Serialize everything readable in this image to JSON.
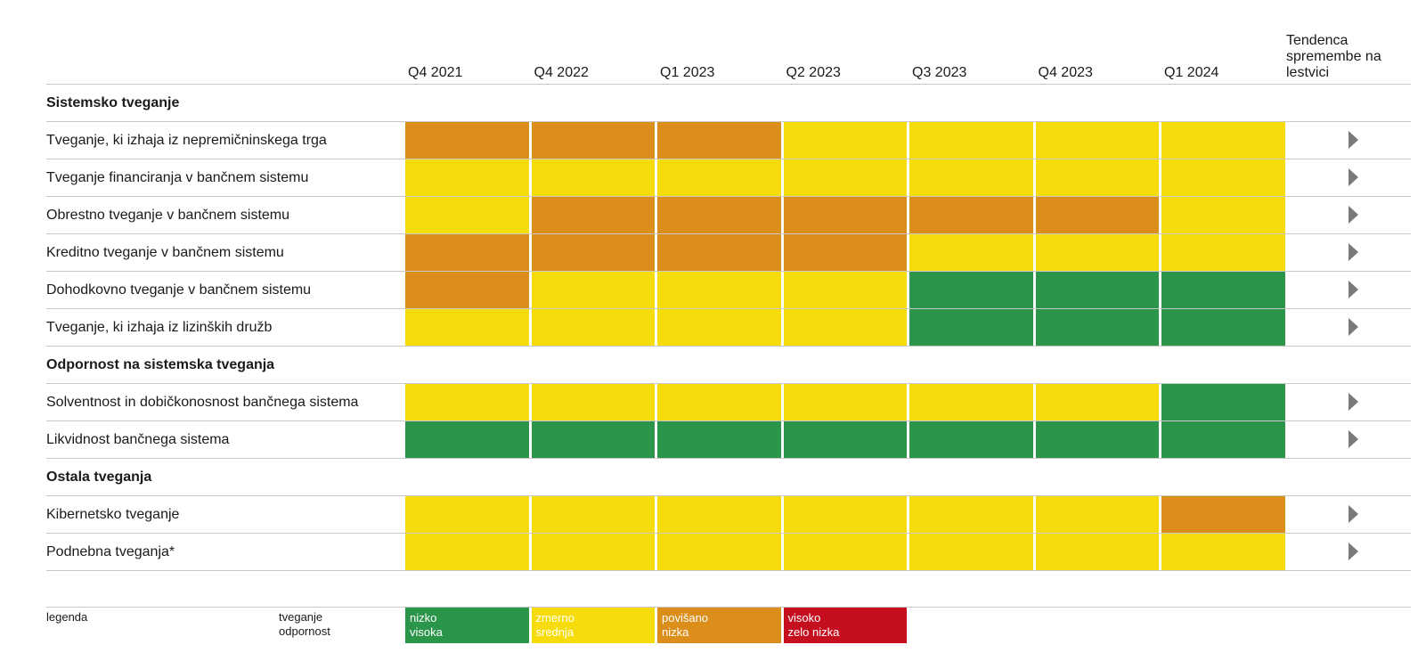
{
  "colors": {
    "low": "#2b9549",
    "medium": "#f7dc0b",
    "elevated": "#db8e1a",
    "high": "#c50f1f"
  },
  "header": {
    "trend_label": "Tendenca\nspremembe na\nlestvici"
  },
  "chart_data": {
    "type": "heatmap",
    "columns": [
      "Q4 2021",
      "Q4 2022",
      "Q1 2023",
      "Q2 2023",
      "Q3 2023",
      "Q4 2023",
      "Q1 2024"
    ],
    "levels": [
      "low",
      "medium",
      "elevated",
      "high"
    ],
    "sections": [
      {
        "title": "Sistemsko tveganje",
        "rows": [
          {
            "label": "Tveganje, ki izhaja iz nepremičninskega trga",
            "values": [
              "elevated",
              "elevated",
              "elevated",
              "medium",
              "medium",
              "medium",
              "medium"
            ],
            "trend": "right"
          },
          {
            "label": "Tveganje financiranja v bančnem sistemu",
            "values": [
              "medium",
              "medium",
              "medium",
              "medium",
              "medium",
              "medium",
              "medium"
            ],
            "trend": "right"
          },
          {
            "label": "Obrestno tveganje v bančnem sistemu",
            "values": [
              "medium",
              "elevated",
              "elevated",
              "elevated",
              "elevated",
              "elevated",
              "medium"
            ],
            "trend": "right"
          },
          {
            "label": "Kreditno tveganje v bančnem sistemu",
            "values": [
              "elevated",
              "elevated",
              "elevated",
              "elevated",
              "medium",
              "medium",
              "medium"
            ],
            "trend": "right"
          },
          {
            "label": "Dohodkovno tveganje v bančnem sistemu",
            "values": [
              "elevated",
              "medium",
              "medium",
              "medium",
              "low",
              "low",
              "low"
            ],
            "trend": "right"
          },
          {
            "label": "Tveganje, ki izhaja iz lizinških družb",
            "values": [
              "medium",
              "medium",
              "medium",
              "medium",
              "low",
              "low",
              "low"
            ],
            "trend": "right"
          }
        ]
      },
      {
        "title": "Odpornost na sistemska tveganja",
        "rows": [
          {
            "label": "Solventnost in dobičkonosnost bančnega sistema",
            "values": [
              "medium",
              "medium",
              "medium",
              "medium",
              "medium",
              "medium",
              "low"
            ],
            "trend": "right"
          },
          {
            "label": "Likvidnost bančnega sistema",
            "values": [
              "low",
              "low",
              "low",
              "low",
              "low",
              "low",
              "low"
            ],
            "trend": "right"
          }
        ]
      },
      {
        "title": "Ostala tveganja",
        "rows": [
          {
            "label": "Kibernetsko tveganje",
            "values": [
              "medium",
              "medium",
              "medium",
              "medium",
              "medium",
              "medium",
              "elevated"
            ],
            "trend": "right"
          },
          {
            "label": "Podnebna tveganja*",
            "values": [
              "medium",
              "medium",
              "medium",
              "medium",
              "medium",
              "medium",
              "medium"
            ],
            "trend": "right"
          }
        ]
      }
    ]
  },
  "legend": {
    "title": "legenda",
    "row1_label": "tveganje",
    "row2_label": "odpornost",
    "items": [
      {
        "level": "low",
        "line1": "nizko",
        "line2": "visoka"
      },
      {
        "level": "medium",
        "line1": "zmerno",
        "line2": "srednja"
      },
      {
        "level": "elevated",
        "line1": "povišano",
        "line2": "nizka"
      },
      {
        "level": "high",
        "line1": "visoko",
        "line2": "zelo nizka"
      }
    ]
  }
}
